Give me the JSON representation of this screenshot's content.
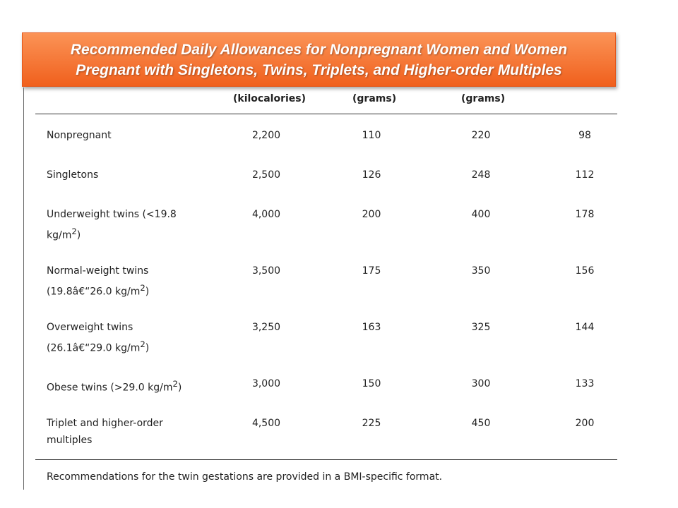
{
  "title": {
    "line1": "Recommended Daily Allowances for Nonpregnant Women and Women",
    "line2": "Pregnant with Singletons, Twins, Triplets, and Higher-order Multiples"
  },
  "headers": {
    "kcal": "(kilocalories)",
    "grams1": "(grams)",
    "grams2": "(grams)"
  },
  "rows": [
    {
      "label1": "Nonpregnant",
      "label2": "",
      "sup": "",
      "label2_end": "",
      "v1": "2,200",
      "v2": "110",
      "v3": "220",
      "v4": "98"
    },
    {
      "label1": "Singletons",
      "label2": "",
      "sup": "",
      "label2_end": "",
      "v1": "2,500",
      "v2": "126",
      "v3": "248",
      "v4": "112"
    },
    {
      "label1": "Underweight twins (<19.8",
      "label2": "kg/m",
      "sup": "2",
      "label2_end": ")",
      "v1": "4,000",
      "v2": "200",
      "v3": "400",
      "v4": "178"
    },
    {
      "label1": "Normal-weight twins",
      "label2": "(19.8â€“26.0 kg/m",
      "sup": "2",
      "label2_end": ")",
      "v1": "3,500",
      "v2": "175",
      "v3": "350",
      "v4": "156"
    },
    {
      "label1": "Overweight twins",
      "label2": "(26.1â€“29.0 kg/m",
      "sup": "2",
      "label2_end": ")",
      "v1": "3,250",
      "v2": "163",
      "v3": "325",
      "v4": "144"
    },
    {
      "label1": "Obese twins (>29.0 kg/m",
      "label2": "",
      "sup": "2",
      "label2_end": ")",
      "v1": "3,000",
      "v2": "150",
      "v3": "300",
      "v4": "133"
    },
    {
      "label1": "Triplet and higher-order",
      "label2": "multiples",
      "sup": "",
      "label2_end": "",
      "v1": "4,500",
      "v2": "225",
      "v3": "450",
      "v4": "200"
    }
  ],
  "footnote": "Recommendations for the twin gestations are provided in a BMI-specific format."
}
